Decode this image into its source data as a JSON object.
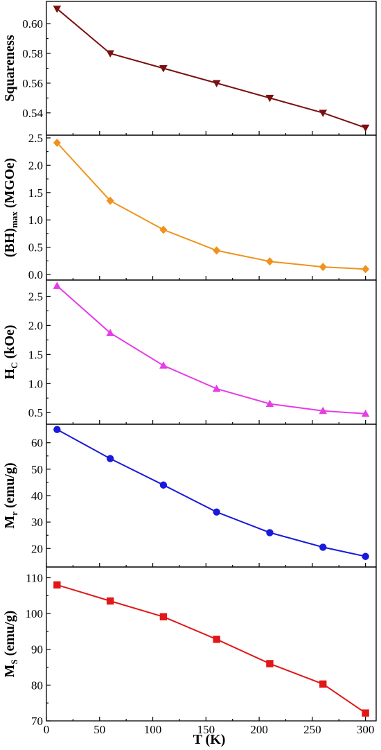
{
  "chart_data": [
    {
      "type": "line",
      "ylabel": "Squareness",
      "ylabel_sub": "",
      "ylabel_rest": "",
      "ylim": [
        0.525,
        0.615
      ],
      "yticks": [
        0.54,
        0.56,
        0.58,
        0.6
      ],
      "yticklabels": [
        "0.54",
        "0.56",
        "0.58",
        "0.60"
      ],
      "marker": "triangle-down",
      "color": "#7b1010",
      "x": [
        10,
        60,
        110,
        160,
        210,
        260,
        300
      ],
      "y": [
        0.61,
        0.58,
        0.57,
        0.56,
        0.55,
        0.54,
        0.53
      ]
    },
    {
      "type": "line",
      "ylabel": "(BH)",
      "ylabel_sub": "max",
      "ylabel_rest": " (MGOe)",
      "ylim": [
        -0.1,
        2.55
      ],
      "yticks": [
        0.0,
        0.5,
        1.0,
        1.5,
        2.0,
        2.5
      ],
      "yticklabels": [
        "0.0",
        "0.5",
        "1.0",
        "1.5",
        "2.0",
        "2.5"
      ],
      "marker": "diamond",
      "color": "#f0921b",
      "x": [
        10,
        60,
        110,
        160,
        210,
        260,
        300
      ],
      "y": [
        2.41,
        1.35,
        0.82,
        0.44,
        0.24,
        0.14,
        0.1
      ]
    },
    {
      "type": "line",
      "ylabel": "H",
      "ylabel_sub": "C",
      "ylabel_rest": " (kOe)",
      "ylim": [
        0.3,
        2.78
      ],
      "yticks": [
        0.5,
        1.0,
        1.5,
        2.0,
        2.5
      ],
      "yticklabels": [
        "0.5",
        "1.0",
        "1.5",
        "2.0",
        "2.5"
      ],
      "marker": "triangle-up",
      "color": "#e63ce6",
      "x": [
        10,
        60,
        110,
        160,
        210,
        260,
        300
      ],
      "y": [
        2.68,
        1.87,
        1.31,
        0.91,
        0.65,
        0.53,
        0.48
      ]
    },
    {
      "type": "line",
      "ylabel": "M",
      "ylabel_sub": "r",
      "ylabel_rest": " (emu/g)",
      "ylim": [
        13,
        67
      ],
      "yticks": [
        20,
        30,
        40,
        50,
        60
      ],
      "yticklabels": [
        "20",
        "30",
        "40",
        "50",
        "60"
      ],
      "marker": "circle",
      "color": "#1a1adb",
      "x": [
        10,
        60,
        110,
        160,
        210,
        260,
        300
      ],
      "y": [
        65,
        54,
        44,
        33.8,
        26,
        20.5,
        17
      ]
    },
    {
      "type": "line",
      "ylabel": "M",
      "ylabel_sub": "S",
      "ylabel_rest": " (emu/g)",
      "ylim": [
        70,
        113
      ],
      "yticks": [
        70,
        80,
        90,
        100,
        110
      ],
      "yticklabels": [
        "70",
        "80",
        "90",
        "100",
        "110"
      ],
      "marker": "square",
      "color": "#e01818",
      "x": [
        10,
        60,
        110,
        160,
        210,
        260,
        300
      ],
      "y": [
        108,
        103.5,
        99.1,
        92.8,
        86,
        80.3,
        72.2
      ]
    }
  ],
  "x_axis": {
    "label": "T (K)",
    "xlim": [
      0,
      310
    ],
    "ticks": [
      0,
      50,
      100,
      150,
      200,
      250,
      300
    ],
    "ticklabels": [
      "0",
      "50",
      "100",
      "150",
      "200",
      "250",
      "300"
    ]
  }
}
